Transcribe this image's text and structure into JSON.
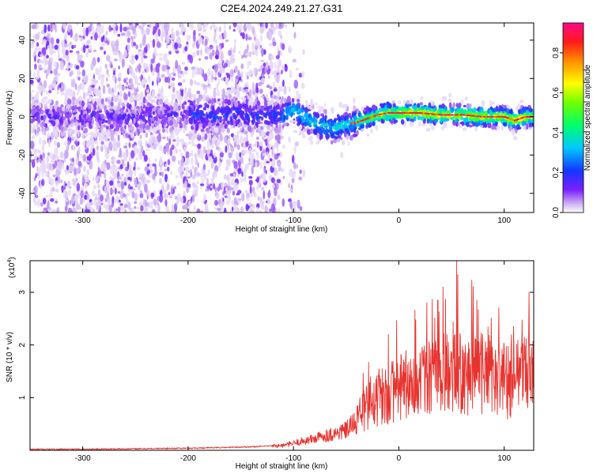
{
  "title": "C2E4.2024.249.21.27.G31",
  "chart_data": [
    {
      "type": "heatmap",
      "xlabel": "Height of straight line (km)",
      "ylabel": "Frequency (Hz)",
      "xlim": [
        -350,
        128
      ],
      "ylim": [
        -50,
        49
      ],
      "xticks": [
        -300,
        -200,
        -100,
        0,
        100
      ],
      "yticks": [
        -40,
        -20,
        0,
        20,
        40
      ],
      "ridge_x": [
        -350,
        -300,
        -250,
        -200,
        -150,
        -110,
        -100,
        -90,
        -80,
        -70,
        -60,
        -55,
        -50,
        -40,
        -30,
        -20,
        -10,
        0,
        20,
        40,
        60,
        80,
        100,
        110,
        120,
        128
      ],
      "ridge_freq": [
        0,
        0,
        0,
        1,
        1,
        1,
        4,
        0,
        -3,
        -5,
        -6,
        -4,
        -4,
        -3,
        -1,
        1,
        2,
        2,
        2,
        1,
        1,
        0,
        0,
        -2,
        0,
        0
      ],
      "colorbar": {
        "label": "Normalized spectral amplitude",
        "range": [
          0,
          0.95
        ],
        "ticks": [
          "0.0",
          "0.2",
          "0.4",
          "0.6",
          "0.8"
        ]
      }
    },
    {
      "type": "line",
      "xlabel": "Height of straight line (km)",
      "ylabel": "SNR (10 * v/v)",
      "y_scale_label": "(x10",
      "y_scale_exp": "4",
      "y_scale_close": ")",
      "xlim": [
        -350,
        128
      ],
      "ylim": [
        0,
        3.6
      ],
      "xticks": [
        -300,
        -200,
        -100,
        0,
        100
      ],
      "yticks": [
        1,
        2,
        3
      ],
      "series": [
        {
          "name": "SNR",
          "color": "#e8332f",
          "x": [
            -350,
            -300,
            -250,
            -200,
            -150,
            -110,
            -100,
            -90,
            -80,
            -70,
            -60,
            -50,
            -40,
            -30,
            -20,
            -10,
            0,
            10,
            20,
            30,
            40,
            50,
            55,
            60,
            70,
            80,
            90,
            100,
            110,
            120,
            128
          ],
          "y": [
            0.02,
            0.02,
            0.03,
            0.04,
            0.06,
            0.09,
            0.13,
            0.18,
            0.22,
            0.28,
            0.32,
            0.38,
            0.55,
            0.85,
            1.0,
            1.1,
            1.2,
            1.25,
            1.3,
            1.35,
            1.45,
            1.55,
            1.6,
            1.5,
            1.45,
            1.4,
            1.35,
            1.3,
            1.35,
            1.4,
            1.45
          ],
          "annotated_peaks": [
            {
              "x": 55,
              "y": 3.6
            },
            {
              "x": 42,
              "y": 3.1
            },
            {
              "x": 37,
              "y": 2.85
            },
            {
              "x": 74,
              "y": 2.85
            },
            {
              "x": -27,
              "y": 1.4
            },
            {
              "x": -10,
              "y": 2.2
            }
          ]
        }
      ]
    }
  ]
}
